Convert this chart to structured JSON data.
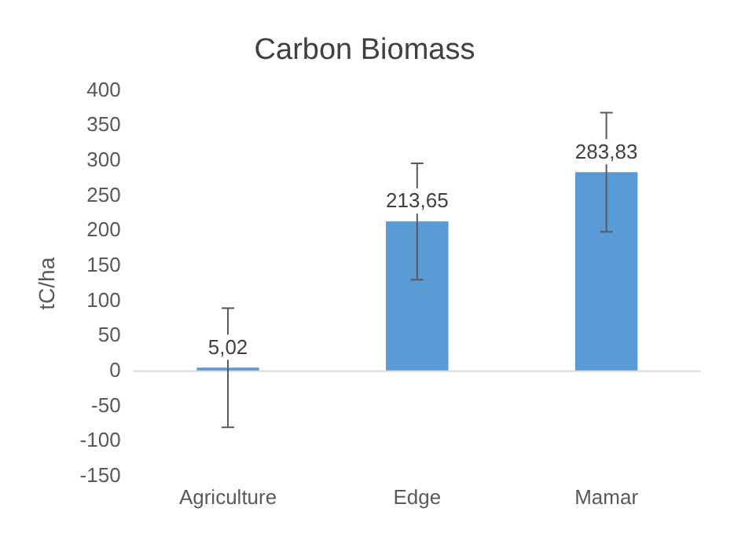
{
  "chart_data": {
    "type": "bar",
    "title": "Carbon Biomass",
    "ylabel": "tC/ha",
    "categories": [
      "Agriculture",
      "Edge",
      "Mamar"
    ],
    "values": [
      5.02,
      213.65,
      283.83
    ],
    "value_labels": [
      "5,02",
      "213,65",
      "283,83"
    ],
    "errors": [
      85,
      83,
      85
    ],
    "color": "#5b9bd5",
    "ylim": [
      -150,
      400
    ],
    "yticks": [
      -150,
      -100,
      -50,
      0,
      50,
      100,
      150,
      200,
      250,
      300,
      350,
      400
    ],
    "ref_lines": [
      {
        "axis": "y",
        "value": 0,
        "color": "#d9d9d9"
      }
    ],
    "grid": false,
    "legend": false
  }
}
